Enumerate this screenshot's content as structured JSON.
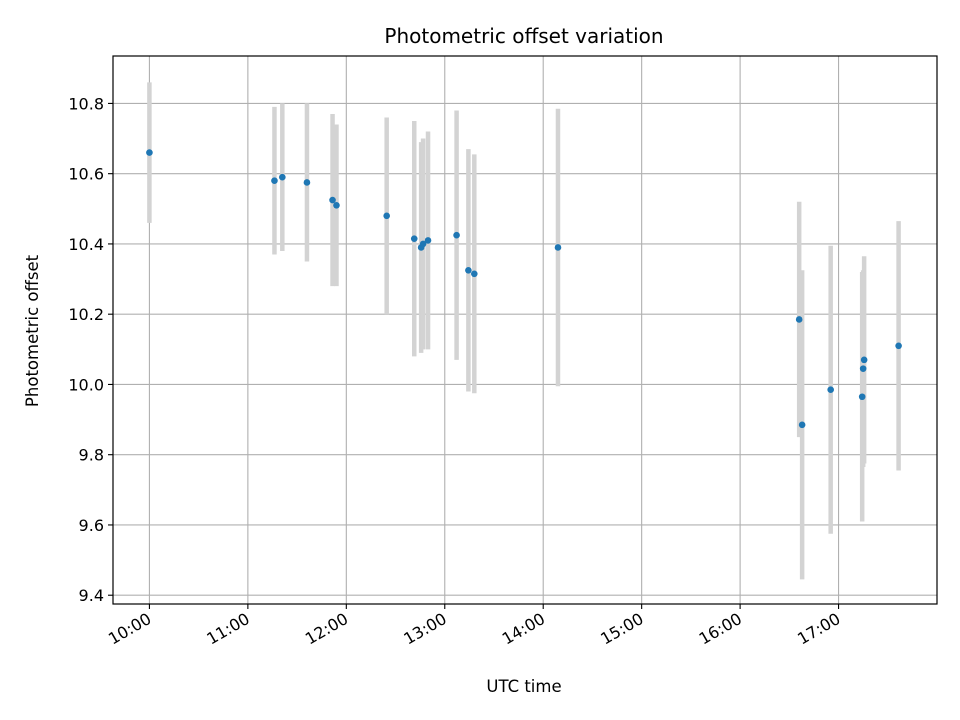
{
  "chart_data": {
    "type": "scatter",
    "title": "Photometric offset variation",
    "xlabel": "UTC time",
    "ylabel": "Photometric offset",
    "x_unit": "hours UTC",
    "xlim": [
      9.63,
      18.0
    ],
    "ylim": [
      9.375,
      10.935
    ],
    "x_ticks": [
      10,
      11,
      12,
      13,
      14,
      15,
      16,
      17
    ],
    "x_tick_labels": [
      "10:00",
      "11:00",
      "12:00",
      "13:00",
      "14:00",
      "15:00",
      "16:00",
      "17:00"
    ],
    "y_ticks": [
      9.4,
      9.6,
      9.8,
      10.0,
      10.2,
      10.4,
      10.6,
      10.8
    ],
    "y_tick_labels": [
      "9.4",
      "9.6",
      "9.8",
      "10.0",
      "10.2",
      "10.4",
      "10.6",
      "10.8"
    ],
    "grid": true,
    "point_color": "#1f77b4",
    "errorbar_color": "#d3d3d3",
    "points": [
      {
        "x": 10.0,
        "y": 10.66,
        "err": 0.2
      },
      {
        "x": 11.27,
        "y": 10.58,
        "err": 0.21
      },
      {
        "x": 11.35,
        "y": 10.59,
        "err": 0.21
      },
      {
        "x": 11.6,
        "y": 10.575,
        "err": 0.225
      },
      {
        "x": 11.86,
        "y": 10.525,
        "err": 0.245
      },
      {
        "x": 11.9,
        "y": 10.51,
        "err": 0.23
      },
      {
        "x": 12.41,
        "y": 10.48,
        "err": 0.28
      },
      {
        "x": 12.69,
        "y": 10.415,
        "err": 0.335
      },
      {
        "x": 12.76,
        "y": 10.39,
        "err": 0.3
      },
      {
        "x": 12.78,
        "y": 10.4,
        "err": 0.3
      },
      {
        "x": 12.83,
        "y": 10.41,
        "err": 0.31
      },
      {
        "x": 13.12,
        "y": 10.425,
        "err": 0.355
      },
      {
        "x": 13.24,
        "y": 10.325,
        "err": 0.345
      },
      {
        "x": 13.3,
        "y": 10.315,
        "err": 0.34
      },
      {
        "x": 14.15,
        "y": 10.39,
        "err": 0.395
      },
      {
        "x": 16.6,
        "y": 10.185,
        "err": 0.335
      },
      {
        "x": 16.63,
        "y": 9.885,
        "err": 0.44
      },
      {
        "x": 16.92,
        "y": 9.985,
        "err": 0.41
      },
      {
        "x": 17.24,
        "y": 9.965,
        "err": 0.355
      },
      {
        "x": 17.25,
        "y": 10.045,
        "err": 0.28
      },
      {
        "x": 17.26,
        "y": 10.07,
        "err": 0.295
      },
      {
        "x": 17.61,
        "y": 10.11,
        "err": 0.355
      }
    ]
  }
}
